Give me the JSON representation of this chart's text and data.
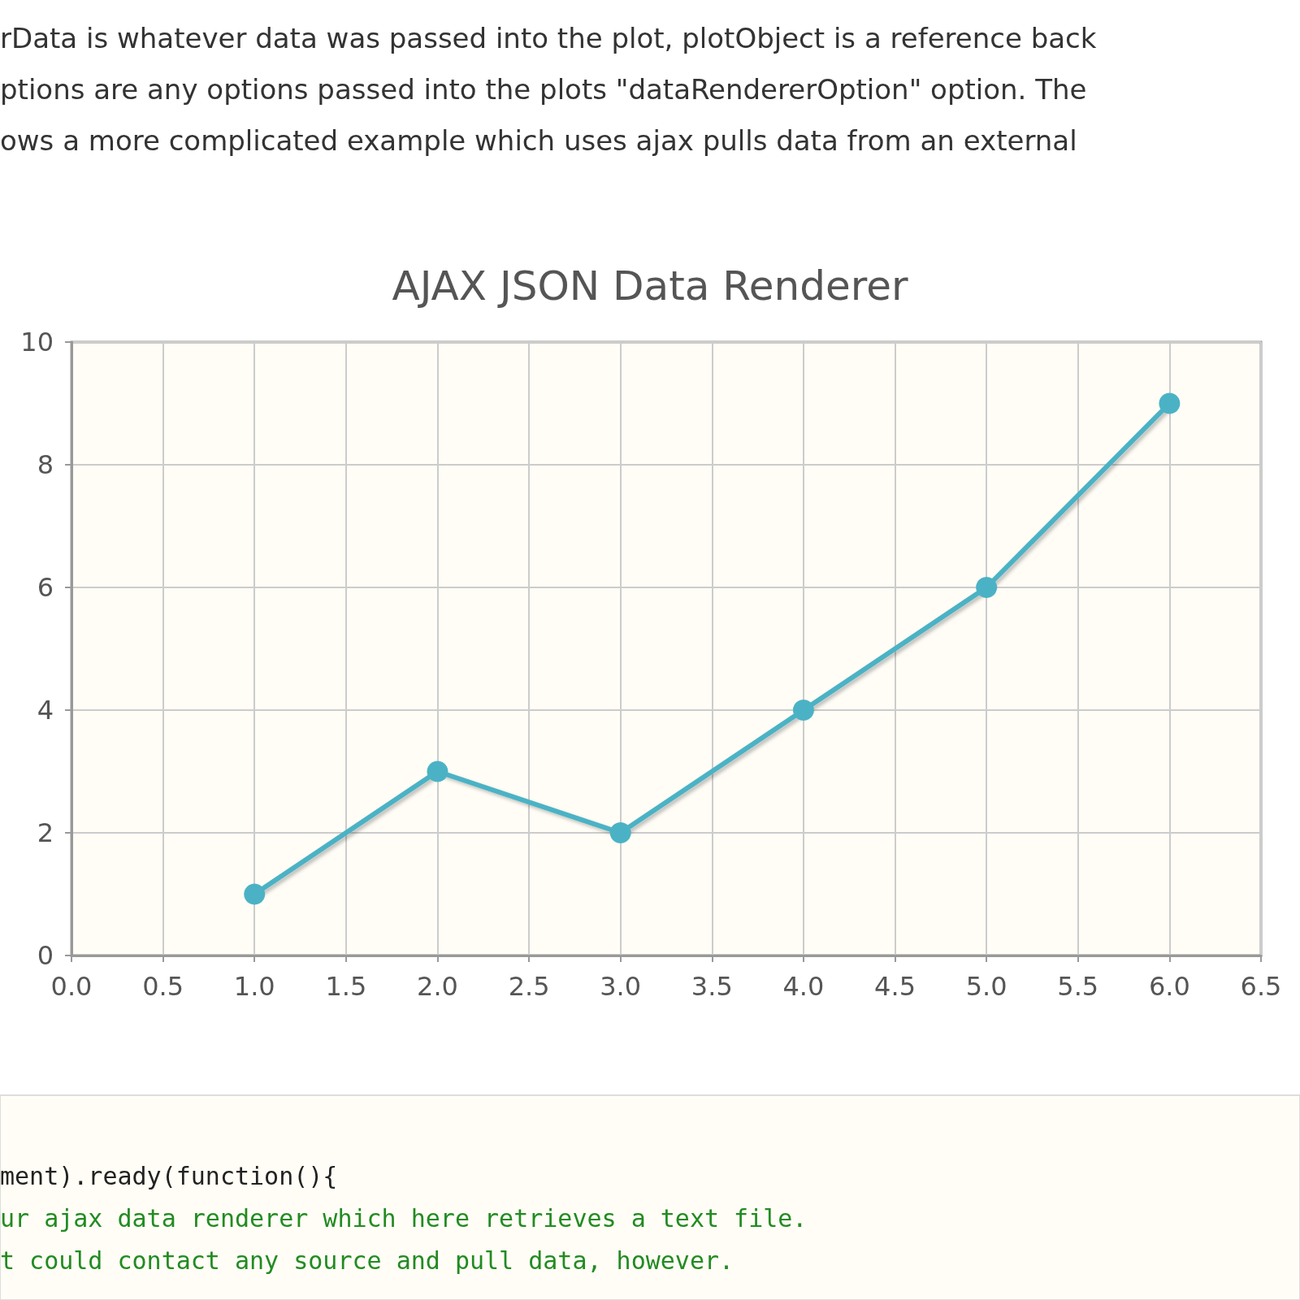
{
  "chart_data": {
    "type": "line",
    "title": "AJAX JSON Data Renderer",
    "x": [
      1,
      2,
      3,
      4,
      5,
      6
    ],
    "series": [
      {
        "color": "#4bb2c5",
        "values": [
          1,
          3,
          2,
          4,
          6,
          9
        ]
      }
    ],
    "xlim": [
      0,
      6.5
    ],
    "xticks": [
      {
        "value": 0,
        "label": "0.0"
      },
      {
        "value": 0.5,
        "label": "0.5"
      },
      {
        "value": 1,
        "label": "1.0"
      },
      {
        "value": 1.5,
        "label": "1.5"
      },
      {
        "value": 2,
        "label": "2.0"
      },
      {
        "value": 2.5,
        "label": "2.5"
      },
      {
        "value": 3,
        "label": "3.0"
      },
      {
        "value": 3.5,
        "label": "3.5"
      },
      {
        "value": 4,
        "label": "4.0"
      },
      {
        "value": 4.5,
        "label": "4.5"
      },
      {
        "value": 5,
        "label": "5.0"
      },
      {
        "value": 5.5,
        "label": "5.5"
      },
      {
        "value": 6,
        "label": "6.0"
      },
      {
        "value": 6.5,
        "label": "6.5"
      }
    ],
    "ylim": [
      0,
      10
    ],
    "yticks": [
      0,
      2,
      4,
      6,
      8,
      10
    ],
    "grid": true,
    "marker": "circle",
    "line_style": "solid",
    "annotations": [
      "rData is whatever data was passed into the plot, plotObject is a reference back",
      "ptions are any options passed into the plots \"dataRendererOption\" option. The",
      "ows a more complicated example which uses ajax pulls data from an external",
      "ment).ready(function(){",
      "ur ajax data renderer which here retrieves a text file.",
      "t could contact any source and pull data, however."
    ]
  }
}
